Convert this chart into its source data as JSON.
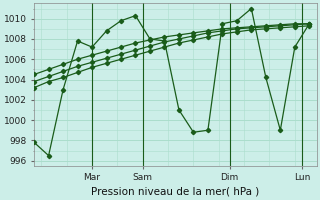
{
  "title": "Pression niveau de la mer( hPa )",
  "bg_color": "#cceee8",
  "grid_color": "#aaddcc",
  "line_color": "#1a5c1a",
  "ylim": [
    995.5,
    1011.5
  ],
  "yticks": [
    996,
    998,
    1000,
    1002,
    1004,
    1006,
    1008,
    1010
  ],
  "xlim": [
    0,
    19.5
  ],
  "vline_positions": [
    4.0,
    7.5,
    13.5,
    18.5
  ],
  "xtick_labels": [
    "Mar",
    "Sam",
    "Dim",
    "Lun"
  ],
  "xtick_positions": [
    4.0,
    7.5,
    13.5,
    18.5
  ],
  "wiggly_x": [
    0,
    1,
    2,
    3,
    4,
    5,
    6,
    7,
    8,
    9,
    10,
    11,
    12,
    13,
    14,
    15,
    16,
    17,
    18,
    19
  ],
  "wiggly_y": [
    997.8,
    996.5,
    1003.0,
    1007.8,
    1007.2,
    1008.8,
    1009.8,
    1010.3,
    1008.0,
    1007.8,
    1001.0,
    998.8,
    999.0,
    1009.5,
    1009.8,
    1011.0,
    1004.2,
    999.0,
    1007.2,
    1009.5
  ],
  "line1_x": [
    0,
    1,
    2,
    3,
    4,
    5,
    6,
    7,
    8,
    9,
    10,
    11,
    12,
    13,
    14,
    15,
    16,
    17,
    18,
    19
  ],
  "line1_y": [
    1003.2,
    1003.8,
    1004.2,
    1004.7,
    1005.2,
    1005.6,
    1006.0,
    1006.4,
    1006.8,
    1007.2,
    1007.6,
    1007.9,
    1008.2,
    1008.5,
    1008.7,
    1008.9,
    1009.0,
    1009.1,
    1009.2,
    1009.3
  ],
  "line2_x": [
    0,
    1,
    2,
    3,
    4,
    5,
    6,
    7,
    8,
    9,
    10,
    11,
    12,
    13,
    14,
    15,
    16,
    17,
    18,
    19
  ],
  "line2_y": [
    1003.8,
    1004.3,
    1004.8,
    1005.3,
    1005.7,
    1006.1,
    1006.5,
    1006.9,
    1007.3,
    1007.7,
    1008.0,
    1008.3,
    1008.6,
    1008.8,
    1009.0,
    1009.1,
    1009.2,
    1009.3,
    1009.4,
    1009.5
  ],
  "line3_x": [
    0,
    1,
    2,
    3,
    4,
    5,
    6,
    7,
    8,
    9,
    10,
    11,
    12,
    13,
    14,
    15,
    16,
    17,
    18,
    19
  ],
  "line3_y": [
    1004.5,
    1005.0,
    1005.5,
    1006.0,
    1006.4,
    1006.8,
    1007.2,
    1007.6,
    1007.9,
    1008.2,
    1008.4,
    1008.6,
    1008.8,
    1009.0,
    1009.1,
    1009.2,
    1009.3,
    1009.4,
    1009.5,
    1009.5
  ]
}
